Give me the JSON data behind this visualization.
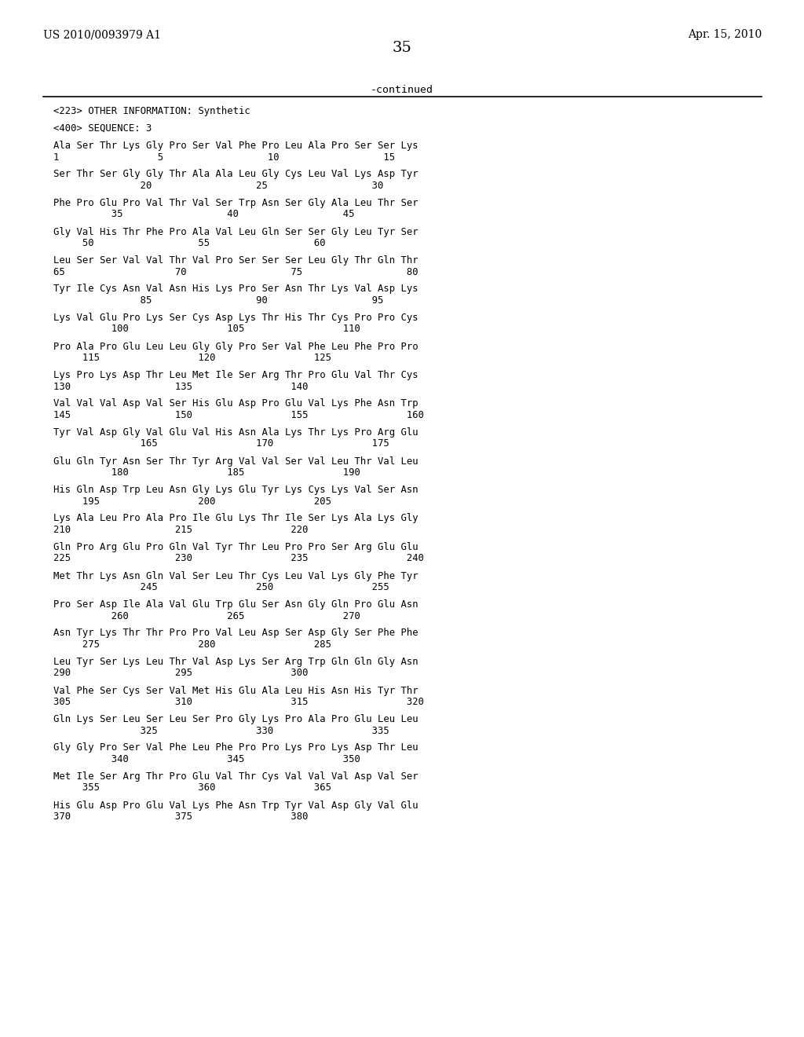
{
  "left_header": "US 2010/0093979 A1",
  "right_header": "Apr. 15, 2010",
  "page_number": "35",
  "continued_label": "-continued",
  "background_color": "#ffffff",
  "text_color": "#000000",
  "content_lines": [
    "<223> OTHER INFORMATION: Synthetic",
    "",
    "<400> SEQUENCE: 3",
    "",
    "Ala Ser Thr Lys Gly Pro Ser Val Phe Pro Leu Ala Pro Ser Ser Lys",
    "1                 5                  10                  15",
    "",
    "Ser Thr Ser Gly Gly Thr Ala Ala Leu Gly Cys Leu Val Lys Asp Tyr",
    "               20                  25                  30",
    "",
    "Phe Pro Glu Pro Val Thr Val Ser Trp Asn Ser Gly Ala Leu Thr Ser",
    "          35                  40                  45",
    "",
    "Gly Val His Thr Phe Pro Ala Val Leu Gln Ser Ser Gly Leu Tyr Ser",
    "     50                  55                  60",
    "",
    "Leu Ser Ser Val Val Thr Val Pro Ser Ser Ser Leu Gly Thr Gln Thr",
    "65                   70                  75                  80",
    "",
    "Tyr Ile Cys Asn Val Asn His Lys Pro Ser Asn Thr Lys Val Asp Lys",
    "               85                  90                  95",
    "",
    "Lys Val Glu Pro Lys Ser Cys Asp Lys Thr His Thr Cys Pro Pro Cys",
    "          100                 105                 110",
    "",
    "Pro Ala Pro Glu Leu Leu Gly Gly Pro Ser Val Phe Leu Phe Pro Pro",
    "     115                 120                 125",
    "",
    "Lys Pro Lys Asp Thr Leu Met Ile Ser Arg Thr Pro Glu Val Thr Cys",
    "130                  135                 140",
    "",
    "Val Val Val Asp Val Ser His Glu Asp Pro Glu Val Lys Phe Asn Trp",
    "145                  150                 155                 160",
    "",
    "Tyr Val Asp Gly Val Glu Val His Asn Ala Lys Thr Lys Pro Arg Glu",
    "               165                 170                 175",
    "",
    "Glu Gln Tyr Asn Ser Thr Tyr Arg Val Val Ser Val Leu Thr Val Leu",
    "          180                 185                 190",
    "",
    "His Gln Asp Trp Leu Asn Gly Lys Glu Tyr Lys Cys Lys Val Ser Asn",
    "     195                 200                 205",
    "",
    "Lys Ala Leu Pro Ala Pro Ile Glu Lys Thr Ile Ser Lys Ala Lys Gly",
    "210                  215                 220",
    "",
    "Gln Pro Arg Glu Pro Gln Val Tyr Thr Leu Pro Pro Ser Arg Glu Glu",
    "225                  230                 235                 240",
    "",
    "Met Thr Lys Asn Gln Val Ser Leu Thr Cys Leu Val Lys Gly Phe Tyr",
    "               245                 250                 255",
    "",
    "Pro Ser Asp Ile Ala Val Glu Trp Glu Ser Asn Gly Gln Pro Glu Asn",
    "          260                 265                 270",
    "",
    "Asn Tyr Lys Thr Thr Pro Pro Val Leu Asp Ser Asp Gly Ser Phe Phe",
    "     275                 280                 285",
    "",
    "Leu Tyr Ser Lys Leu Thr Val Asp Lys Ser Arg Trp Gln Gln Gly Asn",
    "290                  295                 300",
    "",
    "Val Phe Ser Cys Ser Val Met His Glu Ala Leu His Asn His Tyr Thr",
    "305                  310                 315                 320",
    "",
    "Gln Lys Ser Leu Ser Leu Ser Pro Gly Lys Pro Ala Pro Glu Leu Leu",
    "               325                 330                 335",
    "",
    "Gly Gly Pro Ser Val Phe Leu Phe Pro Pro Lys Pro Lys Asp Thr Leu",
    "          340                 345                 350",
    "",
    "Met Ile Ser Arg Thr Pro Glu Val Thr Cys Val Val Val Asp Val Ser",
    "     355                 360                 365",
    "",
    "His Glu Asp Pro Glu Val Lys Phe Asn Trp Tyr Val Asp Gly Val Glu",
    "370                  375                 380"
  ]
}
